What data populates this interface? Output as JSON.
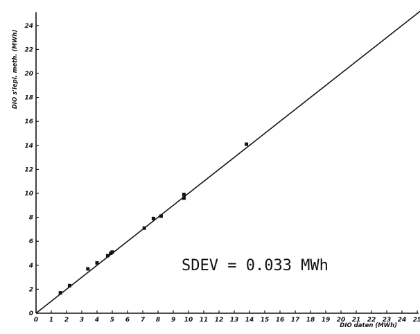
{
  "chart_data": {
    "type": "scatter",
    "title": "",
    "xlabel": "DIO daten (MWh)",
    "ylabel": "DIO s'lepl. meth. (MWh)",
    "xlim": [
      0,
      25
    ],
    "ylim": [
      0,
      25
    ],
    "x_ticks": [
      0,
      1,
      2,
      3,
      4,
      5,
      6,
      7,
      8,
      9,
      10,
      11,
      12,
      13,
      14,
      15,
      16,
      17,
      18,
      19,
      20,
      21,
      22,
      23,
      24,
      25
    ],
    "y_ticks": [
      0,
      2,
      4,
      6,
      8,
      10,
      12,
      14,
      16,
      18,
      20,
      22,
      24
    ],
    "grid": false,
    "legend": "none",
    "annotation": "SDEV = 0.033 MWh",
    "series": [
      {
        "points": [
          {
            "x": 1.6,
            "y": 1.7
          },
          {
            "x": 2.2,
            "y": 2.3
          },
          {
            "x": 3.4,
            "y": 3.7
          },
          {
            "x": 4.0,
            "y": 4.2
          },
          {
            "x": 4.7,
            "y": 4.8
          },
          {
            "x": 4.9,
            "y": 5.0
          },
          {
            "x": 5.0,
            "y": 5.1
          },
          {
            "x": 7.1,
            "y": 7.1
          },
          {
            "x": 7.7,
            "y": 7.9
          },
          {
            "x": 8.2,
            "y": 8.1
          },
          {
            "x": 9.7,
            "y": 9.6
          },
          {
            "x": 9.7,
            "y": 9.9
          },
          {
            "x": 13.8,
            "y": 14.1
          }
        ]
      }
    ],
    "fit_line": {
      "x": [
        0,
        25.5
      ],
      "y": [
        0,
        25.5
      ]
    }
  }
}
